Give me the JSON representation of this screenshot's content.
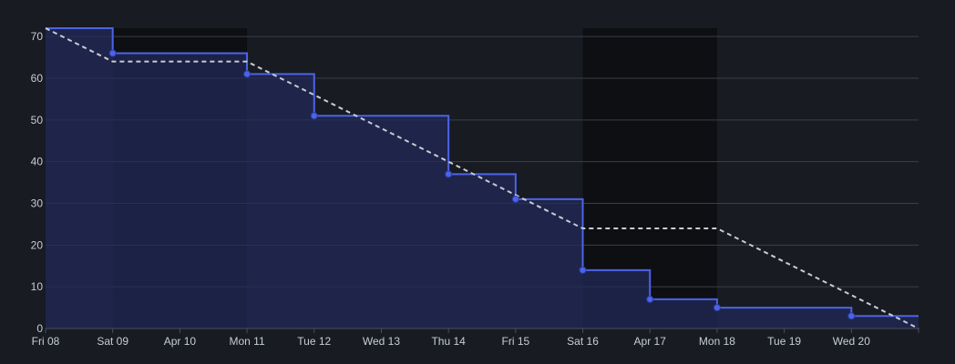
{
  "chart_data": {
    "type": "line",
    "title": "",
    "xlabel": "",
    "ylabel": "",
    "x_tick_labels": [
      "Fri 08",
      "Sat 09",
      "Apr 10",
      "Mon 11",
      "Tue 12",
      "Wed 13",
      "Thu 14",
      "Fri 15",
      "Sat 16",
      "Apr 17",
      "Mon 18",
      "Tue 19",
      "Wed 20"
    ],
    "y_ticks": [
      0,
      10,
      20,
      30,
      40,
      50,
      60,
      70
    ],
    "ylim": [
      0,
      72
    ],
    "x_range_days": [
      0,
      13
    ],
    "grid": true,
    "weekend_bands": [
      {
        "start": "Sat 09",
        "end": "Mon 11"
      },
      {
        "start": "Sat 16",
        "end": "Mon 18"
      }
    ],
    "series": [
      {
        "style": "step-filled",
        "color": "#4c63e9",
        "points": [
          {
            "x": "Fri 08",
            "y": 72
          },
          {
            "x": "Sat 09",
            "y": 66
          },
          {
            "x": "Mon 11",
            "y": 61
          },
          {
            "x": "Tue 12",
            "y": 51
          },
          {
            "x": "Thu 14",
            "y": 37
          },
          {
            "x": "Fri 15",
            "y": 31
          },
          {
            "x": "Sat 16",
            "y": 14
          },
          {
            "x": "Apr 17",
            "y": 7
          },
          {
            "x": "Mon 18",
            "y": 5
          },
          {
            "x": "Wed 20",
            "y": 3
          }
        ],
        "marker_from_index": 1
      },
      {
        "style": "dashed",
        "color": "#c9ccd3",
        "points": [
          {
            "x": "Fri 08",
            "y": 72
          },
          {
            "x": "Sat 09",
            "y": 64
          },
          {
            "x": "Mon 11",
            "y": 64
          },
          {
            "x": "Sat 16",
            "y": 24
          },
          {
            "x": "Mon 18",
            "y": 24
          },
          {
            "x": "end",
            "y": 0
          }
        ]
      }
    ]
  },
  "colors": {
    "background": "#181b21",
    "weekend_band": "#0e0f12",
    "grid": "#3a3f48",
    "axis_text": "#c7ccd6",
    "area_fill": "#23295a",
    "actual_line": "#4c63e9",
    "ideal_line": "#c9ccd3"
  }
}
